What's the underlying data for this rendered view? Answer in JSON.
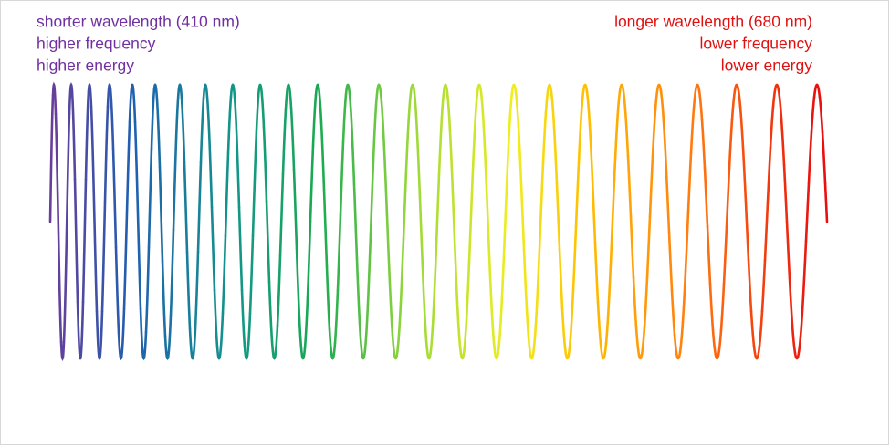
{
  "labels": {
    "left": [
      "shorter wavelength (410 nm)",
      "higher frequency",
      "higher energy"
    ],
    "right": [
      "longer wavelength (680 nm)",
      "lower frequency",
      "lower energy"
    ]
  }
}
